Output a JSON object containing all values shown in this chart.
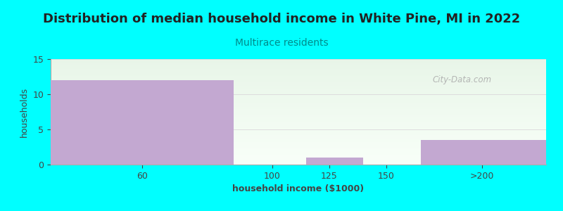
{
  "title": "Distribution of median household income in White Pine, MI in 2022",
  "subtitle": "Multirace residents",
  "subtitle_color": "#008b8b",
  "xlabel": "household income ($1000)",
  "ylabel": "households",
  "bar_lefts": [
    0,
    80,
    112,
    137,
    162
  ],
  "bar_widths": [
    80,
    32,
    25,
    25,
    55
  ],
  "values": [
    12,
    0,
    1,
    0,
    3.5
  ],
  "bar_color": "#c3a8d1",
  "bar_edgecolor": "#c3a8d1",
  "ylim": [
    0,
    15
  ],
  "yticks": [
    0,
    5,
    10,
    15
  ],
  "xtick_positions": [
    40,
    97,
    122,
    147,
    189
  ],
  "xtick_labels": [
    "60",
    "100",
    "125",
    "150",
    ">200"
  ],
  "xmin": 0,
  "xmax": 217,
  "bg_color": "#00ffff",
  "plot_bg_top_color": "#e8f5e8",
  "plot_bg_bottom_color": "#f8fff8",
  "title_fontsize": 13,
  "subtitle_fontsize": 10,
  "axis_label_fontsize": 9,
  "tick_fontsize": 9,
  "watermark": "City-Data.com",
  "grid_color": "#dddddd"
}
